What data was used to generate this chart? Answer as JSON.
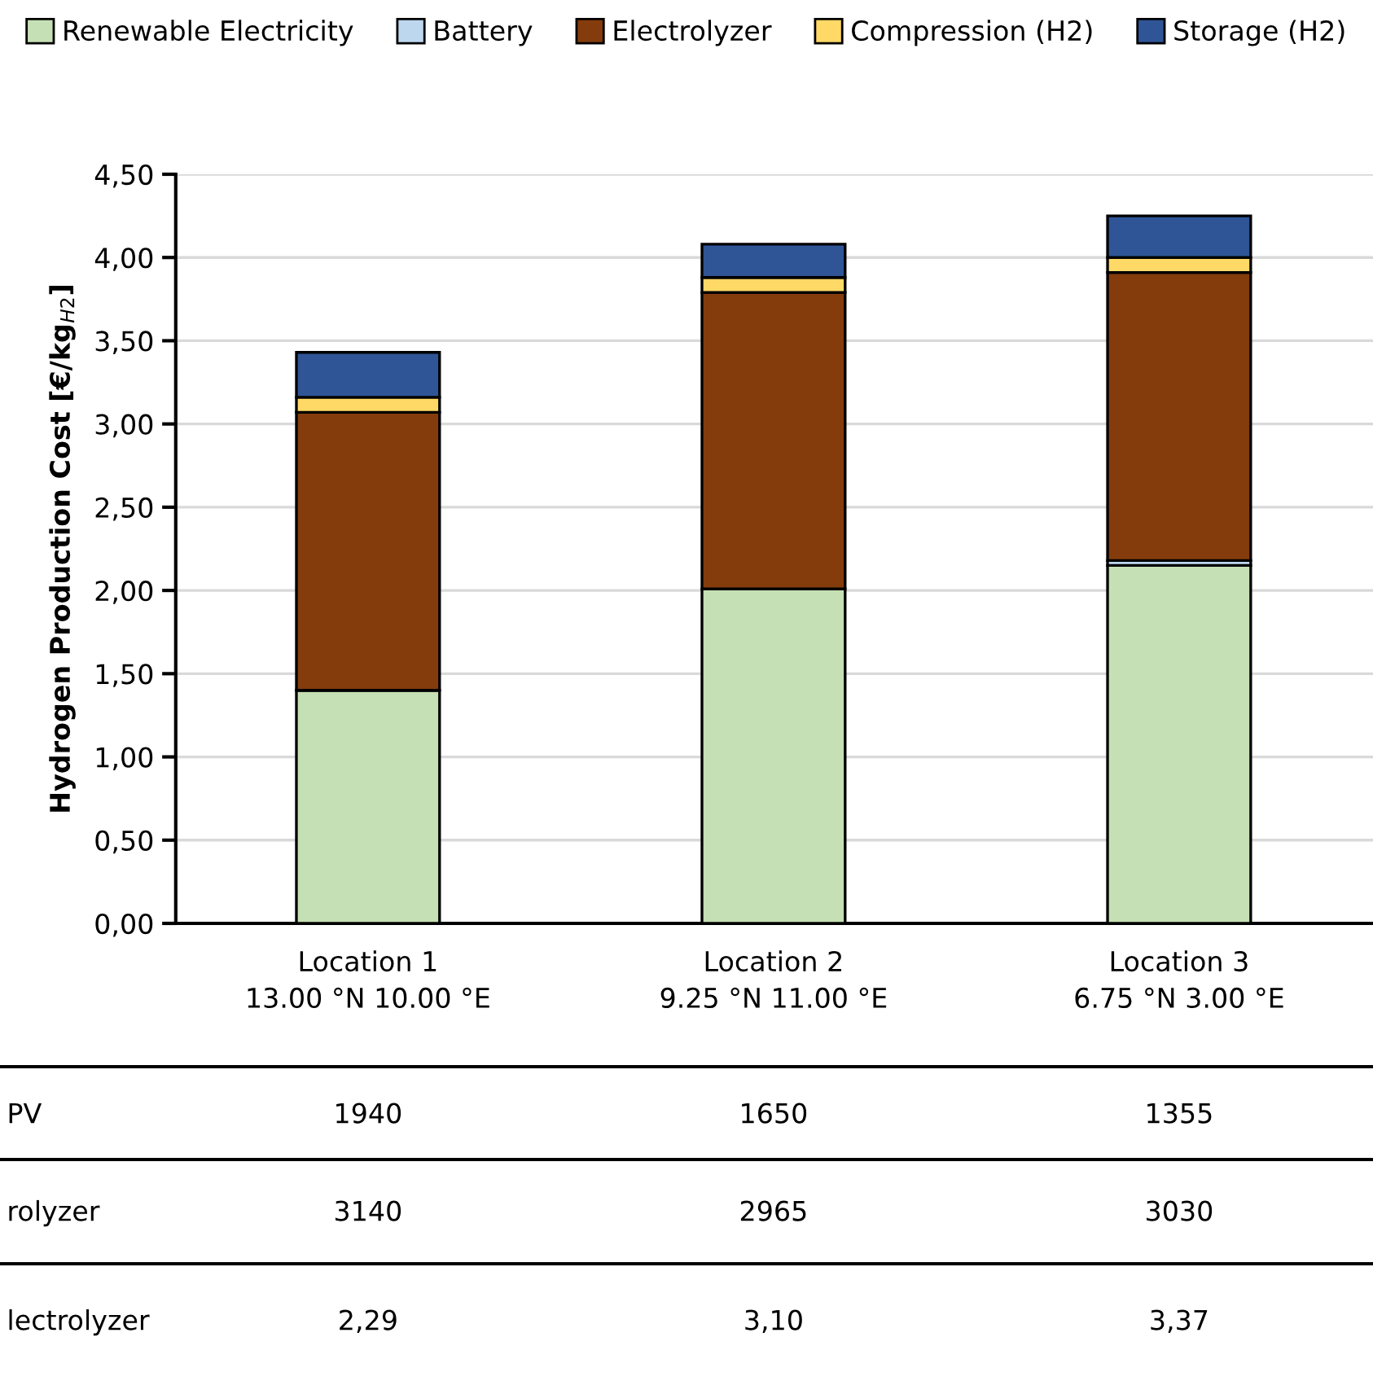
{
  "chart_data": {
    "type": "bar",
    "stacked": true,
    "ylabel": "Hydrogen Production Cost [€/kg$_{H2}$]",
    "categories": [
      "Location 1\n13.00 °N 10.00 °E",
      "Location 2\n9.25 °N 11.00 °E",
      "Location 3\n6.75 °N 3.00 °E"
    ],
    "series": [
      {
        "name": "Renewable Electricity",
        "color": "#c5e0b4",
        "values": [
          1.4,
          2.01,
          2.15
        ]
      },
      {
        "name": "Battery",
        "color": "#bdd7ee",
        "values": [
          0,
          0,
          0.03
        ]
      },
      {
        "name": "Electrolyzer",
        "color": "#843c0c",
        "values": [
          1.67,
          1.78,
          1.73
        ]
      },
      {
        "name": "Compression (H2)",
        "color": "#ffd966",
        "values": [
          0.09,
          0.09,
          0.09
        ]
      },
      {
        "name": "Storage (H2)",
        "color": "#2f5597",
        "values": [
          0.27,
          0.2,
          0.25
        ]
      }
    ],
    "ylim": [
      0,
      4.5
    ],
    "yticks": [
      {
        "value": 0,
        "label": "0,00"
      },
      {
        "value": 0.5,
        "label": "0,50"
      },
      {
        "value": 1,
        "label": "1,00"
      },
      {
        "value": 1.5,
        "label": "1,50"
      },
      {
        "value": 2,
        "label": "2,00"
      },
      {
        "value": 2.5,
        "label": "2,50"
      },
      {
        "value": 3,
        "label": "3,00"
      },
      {
        "value": 3.5,
        "label": "3,50"
      },
      {
        "value": 4,
        "label": "4,00"
      },
      {
        "value": 4.5,
        "label": "4,50"
      }
    ],
    "grid": "y",
    "legend": "top",
    "annotations": [
      "PV",
      "1940",
      "1650",
      "1355",
      "rolyzer",
      "3140",
      "2965",
      "3030",
      "lectrolyzer",
      "2,29",
      "3,10",
      "3,37"
    ]
  }
}
